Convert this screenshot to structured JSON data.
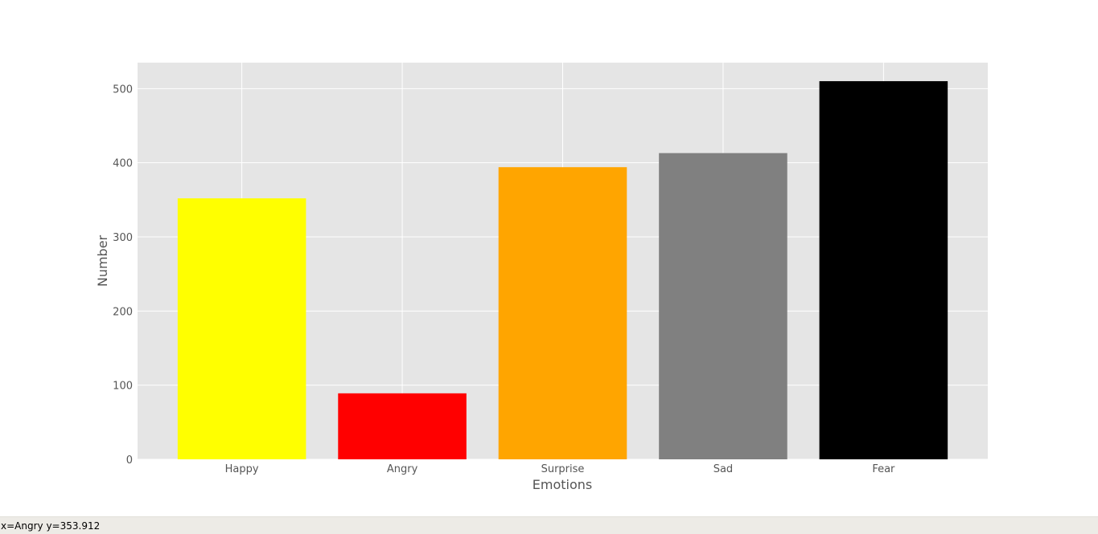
{
  "chart_data": {
    "type": "bar",
    "title": "",
    "xlabel": "Emotions",
    "ylabel": "Number",
    "categories": [
      "Happy",
      "Angry",
      "Surprise",
      "Sad",
      "Fear"
    ],
    "values": [
      352,
      89,
      394,
      413,
      510
    ],
    "colors": [
      "#ffff00",
      "#ff0000",
      "#ffa500",
      "#808080",
      "#000000"
    ],
    "ylim": [
      0,
      535
    ],
    "yticks": [
      0,
      100,
      200,
      300,
      400,
      500
    ],
    "grid": true,
    "background": "#e5e5e5",
    "grid_color": "#ffffff"
  },
  "status_bar": {
    "text": "x=Angry y=353.912"
  }
}
